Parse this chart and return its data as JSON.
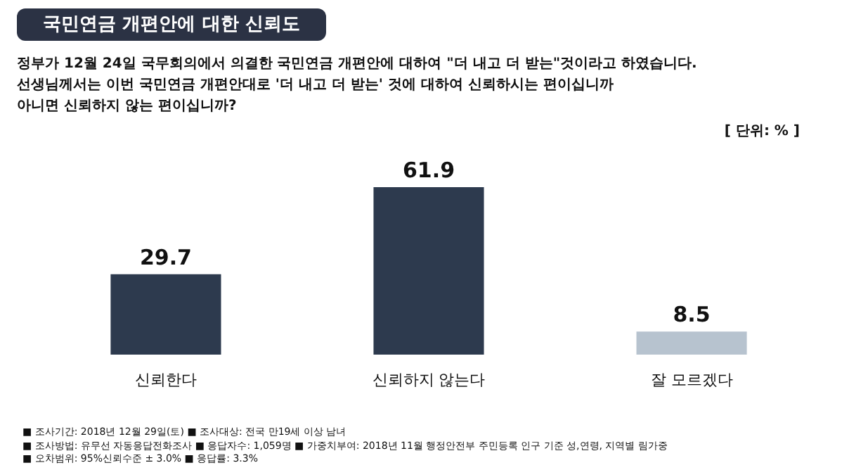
{
  "chart_data": {
    "type": "bar",
    "title": "국민연금 개편안에 대한 신뢰도",
    "subtitle": "정부가 12월 24일 국무회의에서 의결한 국민연금 개편안에 대하여 \"더 내고 더 받는\"것이라고 하였습니다.\n선생님께서는 이번 국민연금 개편안대로 '더 내고 더 받는' 것에 대하여 신뢰하시는 편이십니까\n아니면 신뢰하지 않는 편이십니까?",
    "categories": [
      "신뢰한다",
      "신뢰하지 않는다",
      "잘 모르겠다"
    ],
    "values": [
      29.7,
      61.9,
      8.5
    ],
    "colors": [
      "#2d3a4e",
      "#2d3a4e",
      "#b7c3cf"
    ],
    "data_labels": true,
    "annotations": [
      "[ 단위: % ]",
      "■ 조사기간: 2018년 12월 29일(토) ■ 조사대상: 전국 만19세 이상 남녀",
      "■ 조사방법: 유무선 자동응답전화조사 ■ 응답자수: 1,059명 ■ 가중치부여: 2018년 11월 행정안전부 주민등록 인구 기준 성,연령, 지역별 림가중",
      "■ 오차범위: 95%신뢰수준 ± 3.0% ■ 응답률: 3.3%"
    ]
  }
}
